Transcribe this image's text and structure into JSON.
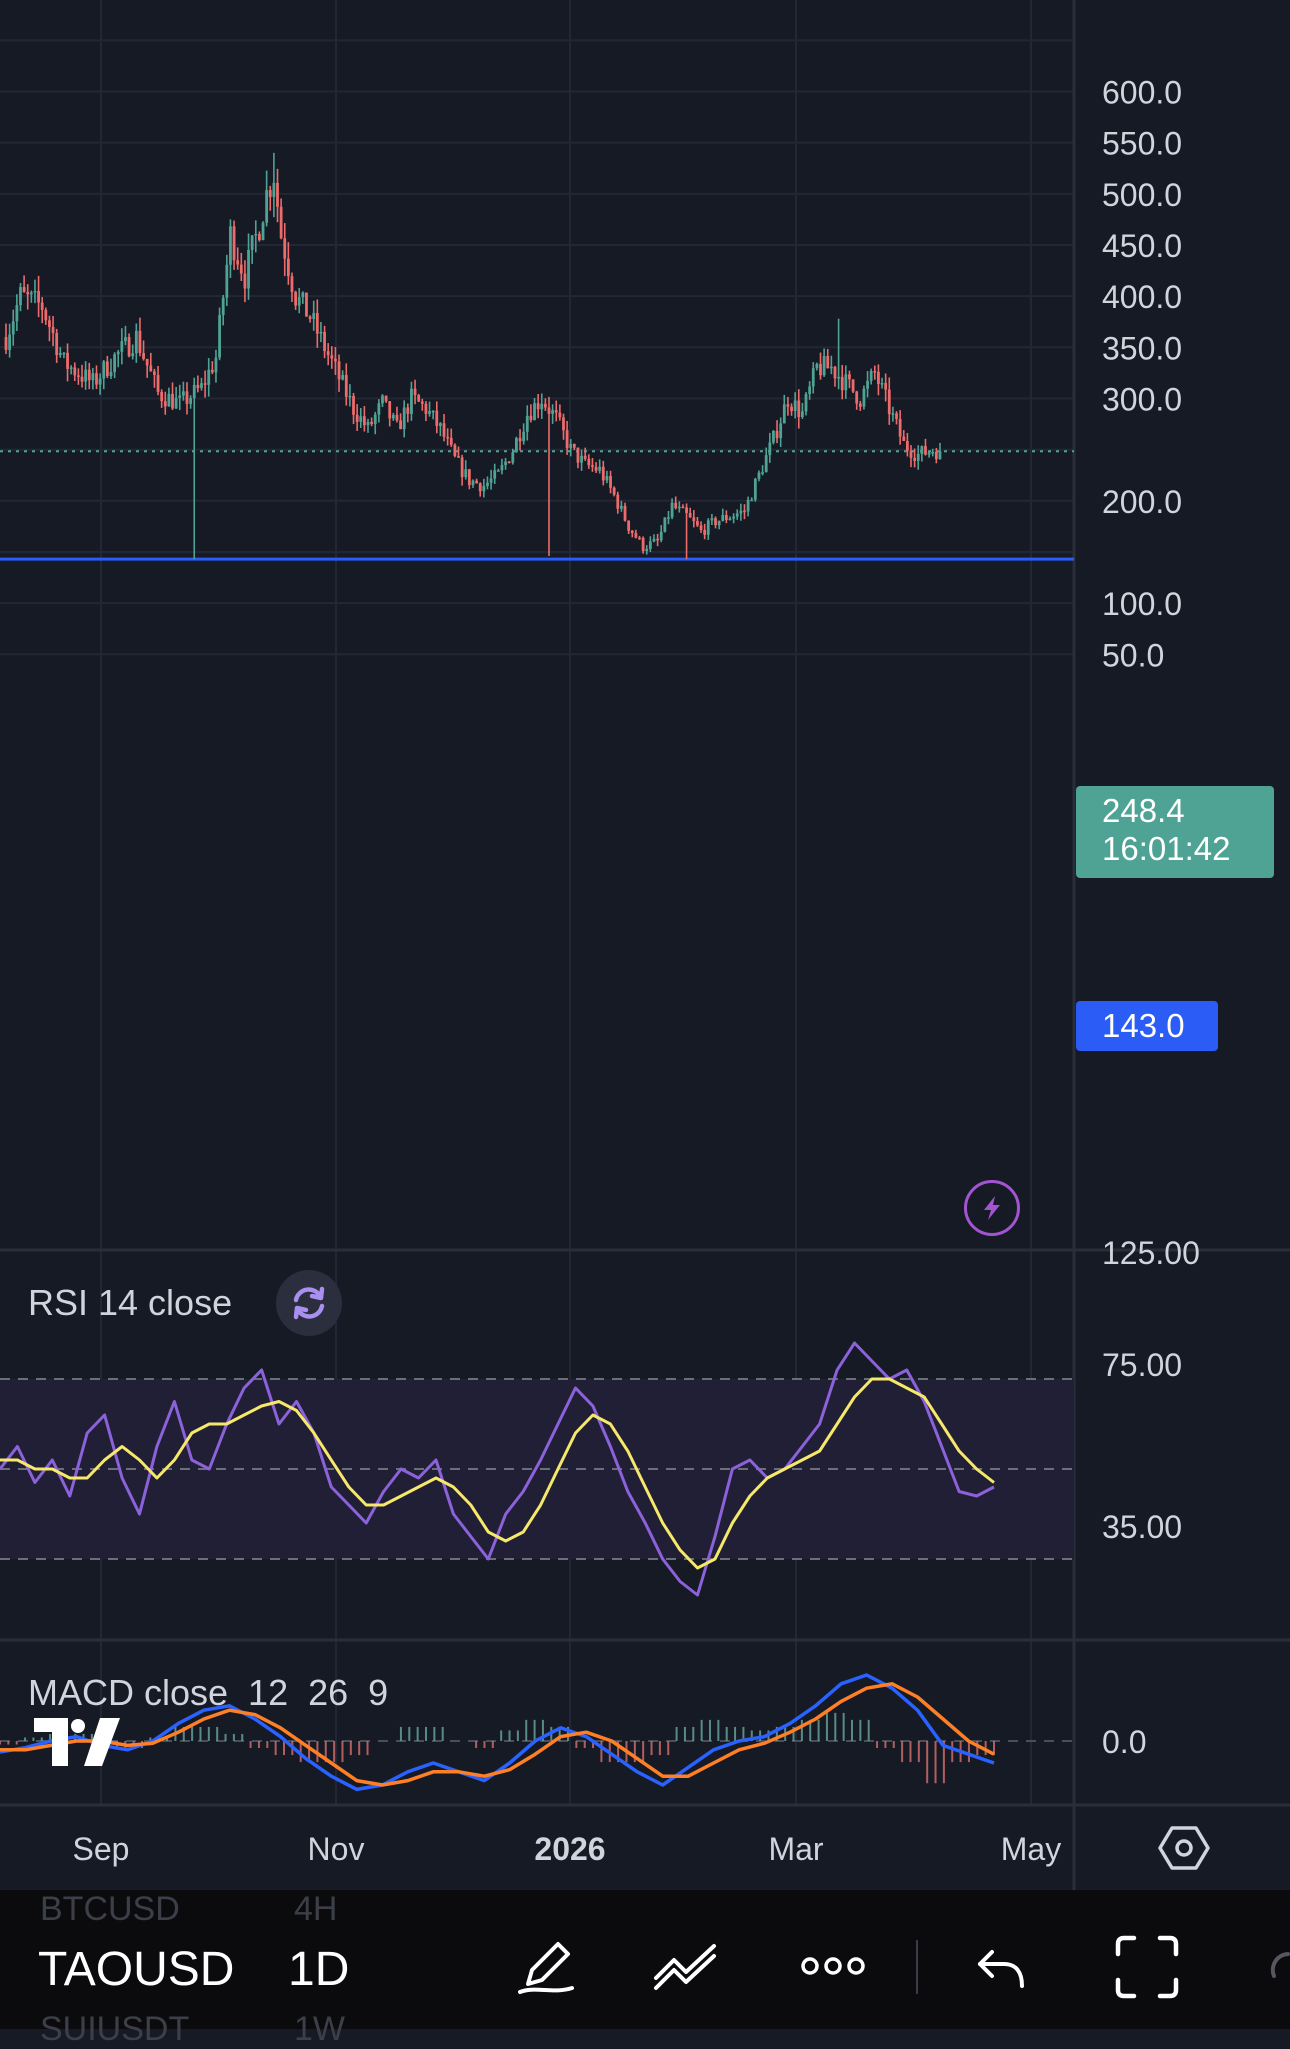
{
  "chart_data": [
    {
      "type": "candlestick",
      "symbol": "TAOUSD",
      "interval": "1D",
      "x_ticks": [
        "Sep",
        "Nov",
        "2026",
        "Mar",
        "May"
      ],
      "y_ticks": [
        "600.0",
        "550.0",
        "500.0",
        "450.0",
        "400.0",
        "350.0",
        "300.0",
        "200.0",
        "100.0",
        "50.0"
      ],
      "ylim": [
        30,
        640
      ],
      "last_price": "248.4",
      "countdown": "16:01:42",
      "horizontal_line": "143.0",
      "line_value": 143.0,
      "approx_path": [
        [
          0,
          360
        ],
        [
          4,
          400
        ],
        [
          10,
          390
        ],
        [
          16,
          335
        ],
        [
          24,
          315
        ],
        [
          30,
          340
        ],
        [
          36,
          360
        ],
        [
          42,
          305
        ],
        [
          48,
          295
        ],
        [
          54,
          310
        ],
        [
          58,
          340
        ],
        [
          60,
          400
        ],
        [
          62,
          460
        ],
        [
          64,
          440
        ],
        [
          66,
          420
        ],
        [
          70,
          470
        ],
        [
          72,
          500
        ],
        [
          74,
          520
        ],
        [
          76,
          460
        ],
        [
          78,
          430
        ],
        [
          80,
          400
        ],
        [
          84,
          380
        ],
        [
          88,
          350
        ],
        [
          92,
          320
        ],
        [
          96,
          290
        ],
        [
          100,
          270
        ],
        [
          104,
          295
        ],
        [
          108,
          270
        ],
        [
          112,
          300
        ],
        [
          116,
          290
        ],
        [
          120,
          270
        ],
        [
          124,
          240
        ],
        [
          128,
          220
        ],
        [
          132,
          215
        ],
        [
          136,
          225
        ],
        [
          140,
          250
        ],
        [
          144,
          285
        ],
        [
          148,
          300
        ],
        [
          152,
          280
        ],
        [
          156,
          250
        ],
        [
          160,
          235
        ],
        [
          164,
          230
        ],
        [
          168,
          205
        ],
        [
          172,
          175
        ],
        [
          176,
          155
        ],
        [
          180,
          160
        ],
        [
          184,
          195
        ],
        [
          188,
          185
        ],
        [
          192,
          170
        ],
        [
          196,
          180
        ],
        [
          200,
          185
        ],
        [
          204,
          190
        ],
        [
          208,
          225
        ],
        [
          212,
          260
        ],
        [
          216,
          300
        ],
        [
          220,
          285
        ],
        [
          224,
          330
        ],
        [
          228,
          330
        ],
        [
          232,
          315
        ],
        [
          236,
          300
        ],
        [
          240,
          325
        ],
        [
          244,
          290
        ],
        [
          248,
          255
        ],
        [
          252,
          245
        ],
        [
          256,
          250
        ],
        [
          258,
          248.4
        ]
      ]
    },
    {
      "type": "line",
      "title": "RSI 14 close",
      "y_ticks": [
        "125.00",
        "75.00",
        "35.00"
      ],
      "bands": [
        70,
        50,
        30
      ],
      "series": [
        {
          "color": "#8b62d9",
          "values": [
            50,
            55,
            47,
            52,
            44,
            58,
            62,
            48,
            40,
            55,
            65,
            52,
            50,
            60,
            68,
            72,
            60,
            65,
            58,
            46,
            42,
            38,
            45,
            50,
            48,
            52,
            40,
            35,
            30,
            40,
            45,
            52,
            60,
            68,
            64,
            55,
            45,
            38,
            30,
            25,
            22,
            35,
            50,
            52,
            48,
            50,
            55,
            60,
            72,
            78,
            74,
            70,
            72,
            65,
            55,
            45,
            44,
            46
          ]
        },
        {
          "color": "#f6e86a",
          "values": [
            52,
            52,
            50,
            50,
            48,
            48,
            52,
            55,
            52,
            48,
            52,
            58,
            60,
            60,
            62,
            64,
            65,
            63,
            58,
            52,
            46,
            42,
            42,
            44,
            46,
            48,
            46,
            42,
            36,
            34,
            36,
            42,
            50,
            58,
            62,
            60,
            54,
            46,
            38,
            32,
            28,
            30,
            38,
            44,
            48,
            50,
            52,
            54,
            60,
            66,
            70,
            70,
            68,
            66,
            60,
            54,
            50,
            47
          ]
        }
      ]
    },
    {
      "type": "line",
      "title": "MACD close",
      "params": [
        "12",
        "26",
        "9"
      ],
      "y_ticks": [
        "0.0"
      ],
      "series": [
        {
          "color": "#2962ff",
          "values": [
            -5,
            -3,
            0,
            2,
            -2,
            -4,
            0,
            8,
            14,
            16,
            10,
            2,
            -8,
            -16,
            -22,
            -20,
            -14,
            -10,
            -14,
            -18,
            -10,
            0,
            6,
            2,
            -6,
            -14,
            -20,
            -12,
            -4,
            0,
            2,
            8,
            16,
            26,
            30,
            24,
            14,
            -2,
            -6,
            -10
          ]
        },
        {
          "color": "#ff7f27",
          "values": [
            -4,
            -4,
            -2,
            0,
            0,
            -2,
            -1,
            4,
            10,
            14,
            12,
            6,
            -2,
            -10,
            -18,
            -20,
            -18,
            -14,
            -14,
            -16,
            -13,
            -6,
            2,
            4,
            0,
            -8,
            -16,
            -16,
            -10,
            -4,
            -1,
            4,
            10,
            18,
            24,
            26,
            20,
            10,
            0,
            -6
          ]
        }
      ]
    }
  ],
  "rsi": {
    "label": "RSI 14 close"
  },
  "macd": {
    "label": "MACD close  12  26  9"
  },
  "toolbar": {
    "ghost_symbol_above": "BTCUSD",
    "ghost_interval_above": "4H",
    "ghost_symbol_below": "SUIUSDT",
    "ghost_interval_below": "1W",
    "symbol": "TAOUSD",
    "interval": "1D",
    "icons": [
      "pencil-icon",
      "trend-line-icon",
      "more-icon",
      "undo-icon",
      "fullscreen-icon",
      "settings-icon"
    ]
  },
  "colors": {
    "background": "#161a25",
    "up": "#4fa394",
    "down": "#ec6b6b",
    "level_line": "#2b5cf6",
    "rsi": "#8b62d9",
    "rsi_ma": "#f6e86a",
    "macd": "#2962ff",
    "signal": "#ff7f27"
  }
}
